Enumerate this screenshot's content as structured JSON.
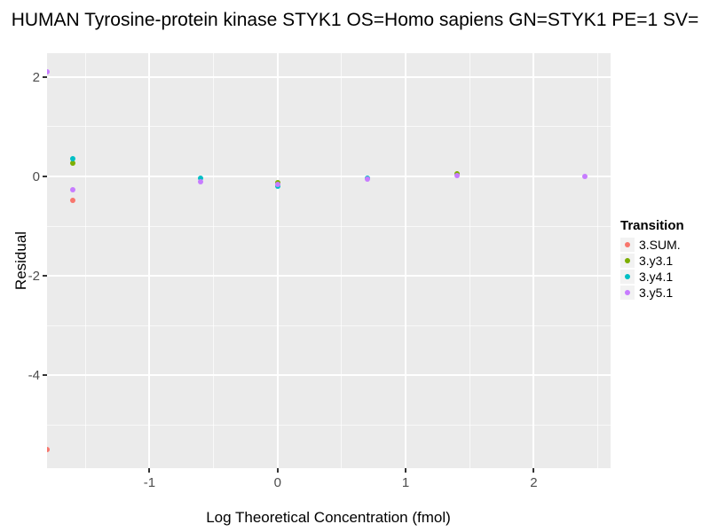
{
  "title": "HUMAN Tyrosine-protein kinase STYK1 OS=Homo sapiens GN=STYK1 PE=1 SV=",
  "colors": {
    "panel_background": "#EBEBEB",
    "grid_major": "#FFFFFF",
    "grid_minor": "#FFFFFF",
    "tick_mark": "#333333",
    "tick_label": "#4D4D4D",
    "legend_key_background": "#F2F2F2"
  },
  "chart_data": {
    "type": "scatter",
    "title": "HUMAN Tyrosine-protein kinase STYK1 OS=Homo sapiens GN=STYK1 PE=1 SV=",
    "xlabel": "Log Theoretical Concentration (fmol)",
    "ylabel": "Residual",
    "xlim": [
      -1.8,
      2.6
    ],
    "ylim": [
      -5.87,
      2.48
    ],
    "x_ticks": [
      -1,
      0,
      1,
      2
    ],
    "y_ticks": [
      2,
      0,
      -2,
      -4
    ],
    "x_minor_ticks": [
      -1.5,
      -0.5,
      0.5,
      1.5,
      2.5
    ],
    "y_minor_ticks": [
      1,
      -1,
      -3,
      -5
    ],
    "grid": true,
    "legend_position": "right",
    "legend_title": "Transition",
    "series": [
      {
        "name": "3.SUM.",
        "color": "#F8766D",
        "points": [
          [
            -1.8,
            -5.5
          ],
          [
            -1.6,
            -0.48
          ]
        ]
      },
      {
        "name": "3.y3.1",
        "color": "#7CAE00",
        "points": [
          [
            -1.6,
            0.26
          ],
          [
            0.0,
            -0.12
          ],
          [
            1.4,
            0.06
          ]
        ]
      },
      {
        "name": "3.y4.1",
        "color": "#00BFC4",
        "points": [
          [
            -1.6,
            0.36
          ],
          [
            -0.6,
            -0.03
          ],
          [
            0.0,
            -0.2
          ],
          [
            0.7,
            -0.03
          ]
        ]
      },
      {
        "name": "3.y5.1",
        "color": "#C77CFF",
        "points": [
          [
            -1.8,
            2.1
          ],
          [
            -1.6,
            -0.27
          ],
          [
            -0.6,
            -0.1
          ],
          [
            0.0,
            -0.16
          ],
          [
            0.7,
            -0.06
          ],
          [
            1.4,
            0.02
          ],
          [
            2.4,
            0.0
          ]
        ]
      }
    ]
  }
}
